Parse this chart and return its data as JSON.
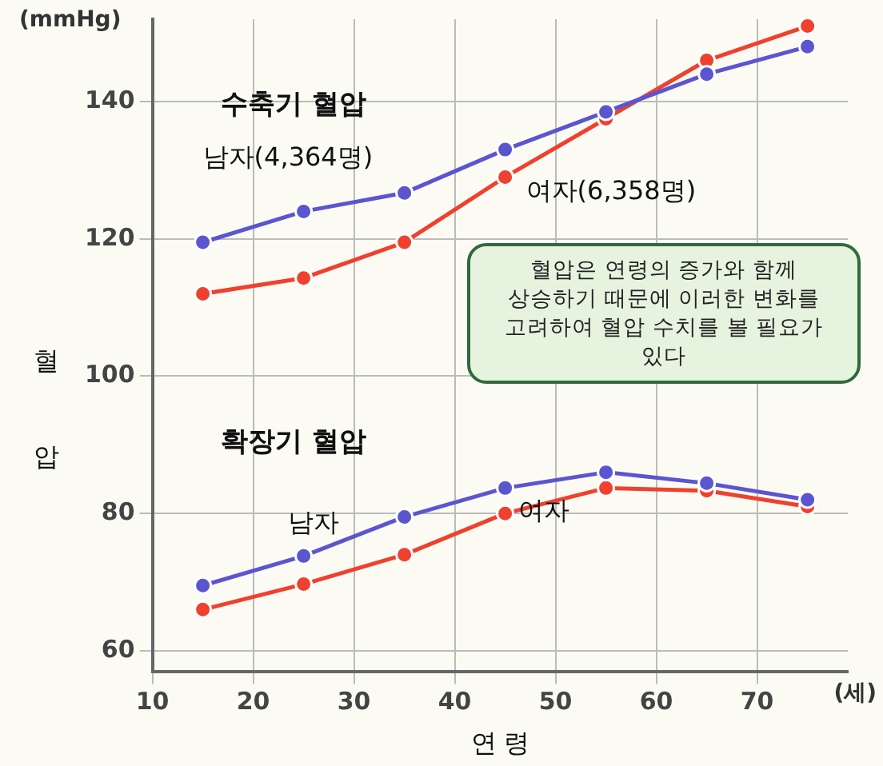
{
  "chart_data": {
    "type": "line",
    "xlabel": "연 령",
    "ylabel": "혈 압",
    "x": [
      15,
      25,
      35,
      45,
      55,
      65,
      75
    ],
    "series": [
      {
        "name": "남자(4,364명)",
        "color": "#5b55d0",
        "values": [
          119.5,
          124,
          126.7,
          133,
          138.5,
          144,
          148
        ]
      },
      {
        "name": "여자(6,358명)",
        "color": "#f0402e",
        "values": [
          112,
          114.3,
          119.5,
          129,
          137.5,
          146,
          151
        ]
      },
      {
        "name": "남자",
        "color": "#5b55d0",
        "values": [
          69.5,
          73.8,
          79.5,
          83.7,
          86,
          84.4,
          82
        ]
      },
      {
        "name": "여자",
        "color": "#f0402e",
        "values": [
          66,
          69.7,
          74,
          80,
          83.7,
          83.3,
          81
        ]
      }
    ],
    "xlim": [
      10,
      79
    ],
    "xticks": [
      10,
      20,
      30,
      40,
      50,
      60,
      70
    ],
    "ylim": [
      57,
      152
    ],
    "yticks": [
      60,
      80,
      100,
      120,
      140
    ],
    "grid": true,
    "legend": false,
    "marker": "circle",
    "line_style": "solid",
    "annotations": [
      "(mmHg)",
      "(세)",
      "수축기 혈압",
      "확장기 혈압",
      "혈압은 연령의 증가와 함께 상승하기 때문에 이러한 변화를 고려하여 혈압 수치를 볼 필요가 있다"
    ]
  }
}
